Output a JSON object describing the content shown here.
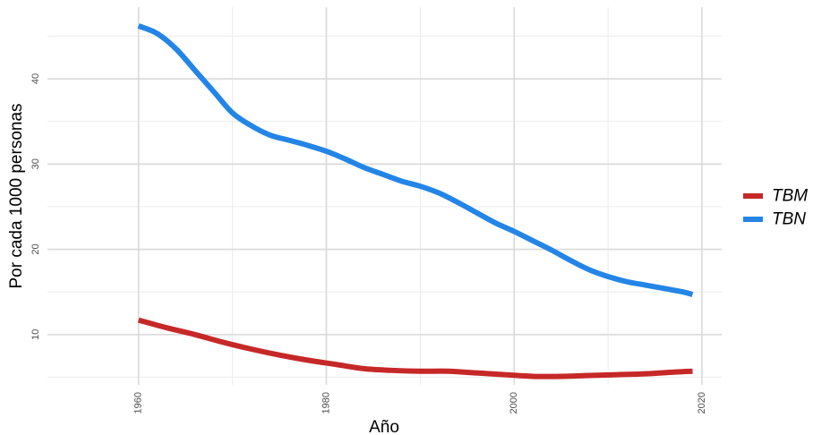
{
  "chart_data": {
    "type": "line",
    "title": "",
    "xlabel": "Año",
    "ylabel": "Por cada 1000 personas",
    "xlim": [
      1950.3,
      2022.1
    ],
    "ylim": [
      4.1,
      48.4
    ],
    "x_major_ticks": [
      1960,
      1980,
      2000,
      2020
    ],
    "x_minor_ticks": [
      1970,
      1990,
      2010
    ],
    "y_major_ticks": [
      10,
      20,
      30,
      40
    ],
    "y_minor_ticks": [
      5,
      15,
      25,
      35,
      45
    ],
    "x_tick_labels": [
      "1960",
      "1980",
      "2000",
      "2020"
    ],
    "y_tick_labels": [
      "10",
      "20",
      "30",
      "40"
    ],
    "grid": true,
    "legend_position": "right",
    "series": [
      {
        "name": "TBM",
        "color": "#c62828",
        "x": [
          1960,
          1963,
          1966,
          1969,
          1972,
          1975,
          1978,
          1981,
          1984,
          1987,
          1990,
          1993,
          1996,
          1999,
          2002,
          2005,
          2008,
          2011,
          2014,
          2017,
          2019
        ],
        "y": [
          11.7,
          10.8,
          10.0,
          9.1,
          8.3,
          7.6,
          7.0,
          6.5,
          6.0,
          5.8,
          5.7,
          5.7,
          5.5,
          5.3,
          5.1,
          5.1,
          5.2,
          5.3,
          5.4,
          5.6,
          5.7
        ]
      },
      {
        "name": "TBN",
        "color": "#2385e6",
        "x": [
          1960,
          1962,
          1964,
          1966,
          1968,
          1970,
          1972,
          1974,
          1976,
          1978,
          1980,
          1982,
          1984,
          1986,
          1988,
          1990,
          1992,
          1994,
          1996,
          1998,
          2000,
          2002,
          2004,
          2006,
          2008,
          2010,
          2012,
          2014,
          2016,
          2018,
          2019
        ],
        "y": [
          46.2,
          45.3,
          43.5,
          41.0,
          38.5,
          36.0,
          34.5,
          33.4,
          32.8,
          32.2,
          31.5,
          30.6,
          29.6,
          28.8,
          28.0,
          27.4,
          26.6,
          25.5,
          24.3,
          23.1,
          22.1,
          21.0,
          19.9,
          18.7,
          17.6,
          16.8,
          16.2,
          15.8,
          15.4,
          15.0,
          14.7
        ]
      }
    ]
  }
}
